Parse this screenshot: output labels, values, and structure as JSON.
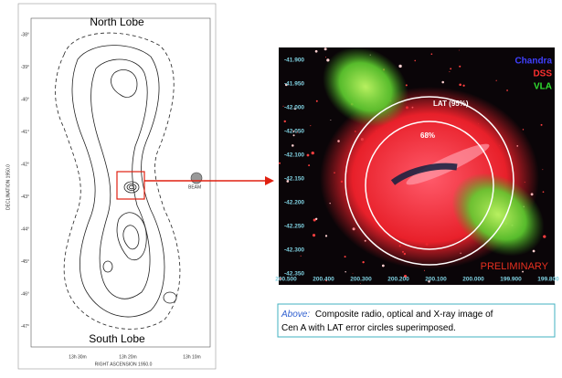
{
  "left_panel": {
    "north_label": "North Lobe",
    "south_label": "South Lobe",
    "y_axis_label": "DECLINATION 1950.0",
    "x_axis_label": "RIGHT ASCENSION 1950.0",
    "beam_label": "BEAM",
    "y_ticks": [
      "-38°",
      "-39°",
      "-40°",
      "-41°",
      "-42°",
      "-43°",
      "-44°",
      "-45°",
      "-46°",
      "-47°"
    ],
    "x_ticks": [
      "13h 30m",
      "13h 20m",
      "13h 10m"
    ]
  },
  "right_panel": {
    "legend": [
      "Chandra",
      "DSS",
      "VLA"
    ],
    "circle_95_label": "LAT (95%)",
    "circle_68_label": "68%",
    "watermark": "PRELIMINARY",
    "y_ticks": [
      "-41.900",
      "-41.950",
      "-42.000",
      "-42.050",
      "-42.100",
      "-42.150",
      "-42.200",
      "-42.250",
      "-42.300",
      "-42.350"
    ],
    "x_ticks": [
      "200.500",
      "200.400",
      "200.300",
      "200.200",
      "200.100",
      "200.000",
      "199.900",
      "199.800"
    ]
  },
  "caption": {
    "lead": "Above:",
    "text": "Composite radio, optical and X-ray image of Cen A with LAT error circles superimposed."
  }
}
